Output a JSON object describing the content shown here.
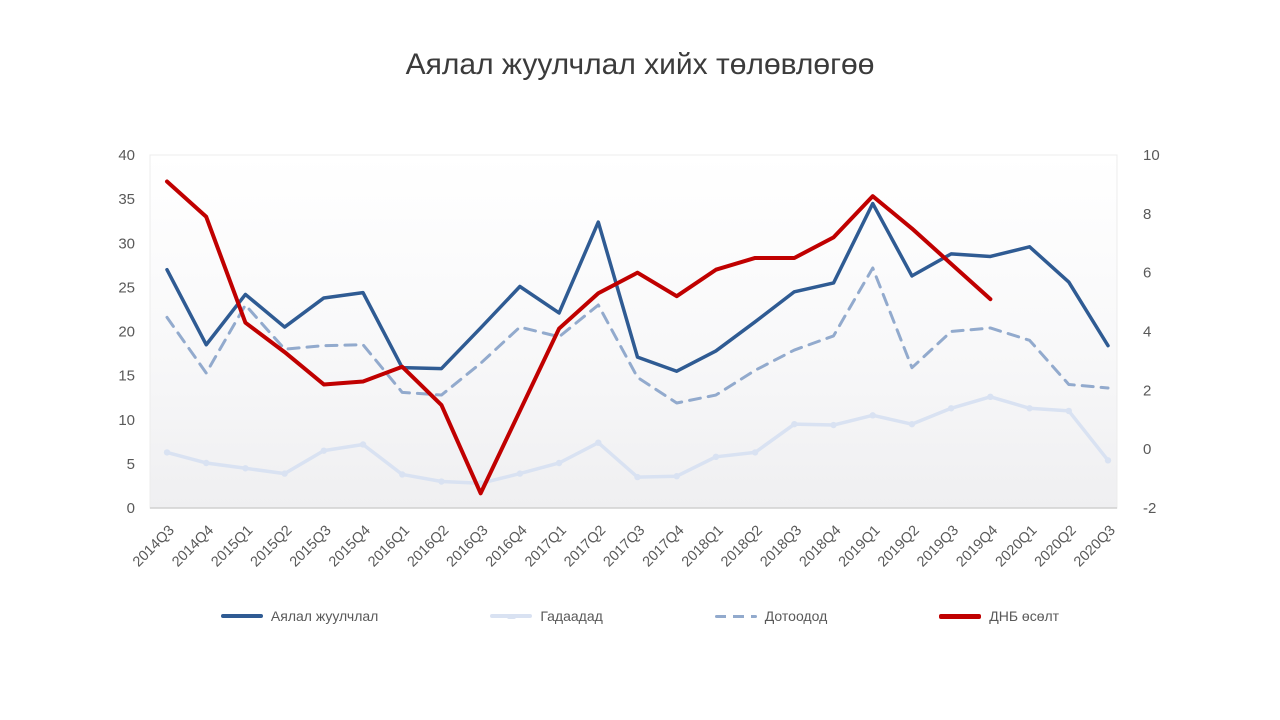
{
  "title": "Аялал жуулчлал хийх төлөвлөгөө",
  "colors": {
    "background": "#ffffff",
    "title_text": "#3b3b3b",
    "axis_text": "#595959",
    "legend_text": "#595959",
    "plot_border": "#ececec",
    "axis_line": "#d0d0d0",
    "plot_gradient_top": "#ffffff",
    "plot_gradient_bottom": "#efeff1"
  },
  "chart_data": {
    "type": "line",
    "title": "Аялал жуулчлал хийх төлөвлөгөө",
    "categories": [
      "2014Q3",
      "2014Q4",
      "2015Q1",
      "2015Q2",
      "2015Q3",
      "2015Q4",
      "2016Q1",
      "2016Q2",
      "2016Q3",
      "2016Q4",
      "2017Q1",
      "2017Q2",
      "2017Q3",
      "2017Q4",
      "2018Q1",
      "2018Q2",
      "2018Q3",
      "2018Q4",
      "2019Q1",
      "2019Q2",
      "2019Q3",
      "2019Q4",
      "2020Q1",
      "2020Q2",
      "2020Q3"
    ],
    "series": [
      {
        "name": "Аялал жуулчлал",
        "axis": "left",
        "color": "#2f5b93",
        "style": "solid",
        "width": 3.5,
        "values": [
          27.0,
          18.5,
          24.2,
          20.5,
          23.8,
          24.4,
          15.9,
          15.8,
          20.4,
          25.1,
          22.1,
          32.4,
          17.1,
          15.5,
          17.8,
          21.1,
          24.5,
          25.5,
          34.5,
          26.3,
          28.8,
          28.5,
          29.6,
          25.6,
          18.4
        ]
      },
      {
        "name": "Гадаадад",
        "axis": "left",
        "color": "#d9e2f2",
        "style": "solid-markers",
        "width": 3.5,
        "values": [
          6.3,
          5.1,
          4.5,
          3.9,
          6.5,
          7.2,
          3.8,
          3.0,
          2.8,
          3.9,
          5.1,
          7.4,
          3.5,
          3.6,
          5.8,
          6.3,
          9.5,
          9.4,
          10.5,
          9.5,
          11.3,
          12.6,
          11.3,
          11.0,
          5.4
        ]
      },
      {
        "name": "Дотоодод",
        "axis": "left",
        "color": "#92aacd",
        "style": "dashed",
        "width": 3,
        "values": [
          21.6,
          15.3,
          23.0,
          18.0,
          18.4,
          18.5,
          13.1,
          12.8,
          16.4,
          20.5,
          19.4,
          23.0,
          14.8,
          11.9,
          12.8,
          15.6,
          17.9,
          19.5,
          27.2,
          15.9,
          20.0,
          20.4,
          19.0,
          14.0,
          13.6
        ]
      },
      {
        "name": "ДНБ өсөлт",
        "axis": "right",
        "color": "#c00000",
        "style": "solid",
        "width": 4,
        "values": [
          9.1,
          7.9,
          4.3,
          3.3,
          2.2,
          2.3,
          2.8,
          1.5,
          -1.5,
          1.3,
          4.1,
          5.3,
          6.0,
          5.2,
          6.1,
          6.5,
          6.5,
          7.2,
          8.6,
          7.5,
          6.3,
          5.1,
          null,
          null,
          null
        ]
      }
    ],
    "left_axis": {
      "min": 0,
      "max": 40,
      "step": 5,
      "ticks": [
        0,
        5,
        10,
        15,
        20,
        25,
        30,
        35,
        40
      ]
    },
    "right_axis": {
      "min": -2,
      "max": 10,
      "step": 2,
      "ticks": [
        -2,
        0,
        2,
        4,
        6,
        8,
        10
      ]
    },
    "grid": false,
    "legend_position": "bottom"
  }
}
